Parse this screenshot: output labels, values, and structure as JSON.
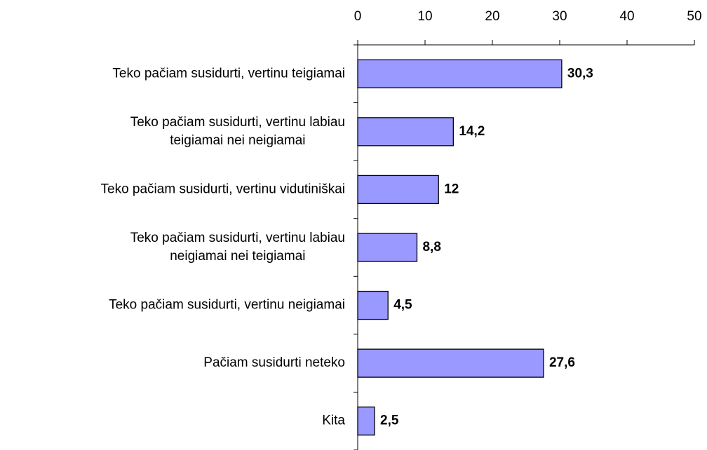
{
  "chart_data": {
    "type": "bar",
    "orientation": "horizontal",
    "categories": [
      "Teko pačiam susidurti, vertinu teigiamai",
      "Teko pačiam susidurti, vertinu labiau\nteigiamai nei neigiamai",
      "Teko pačiam susidurti, vertinu vidutiniškai",
      "Teko pačiam susidurti, vertinu labiau\nneigiamai nei teigiamai",
      "Teko pačiam susidurti, vertinu neigiamai",
      "Pačiam susidurti neteko",
      "Kita"
    ],
    "values": [
      30.3,
      14.2,
      12,
      8.8,
      4.5,
      27.6,
      2.5
    ],
    "value_labels": [
      "30,3",
      "14,2",
      "12",
      "8,8",
      "4,5",
      "27,6",
      "2,5"
    ],
    "color": "#9999ff",
    "xlim": [
      0,
      50
    ],
    "xticks": [
      0,
      10,
      20,
      30,
      40,
      50
    ]
  }
}
